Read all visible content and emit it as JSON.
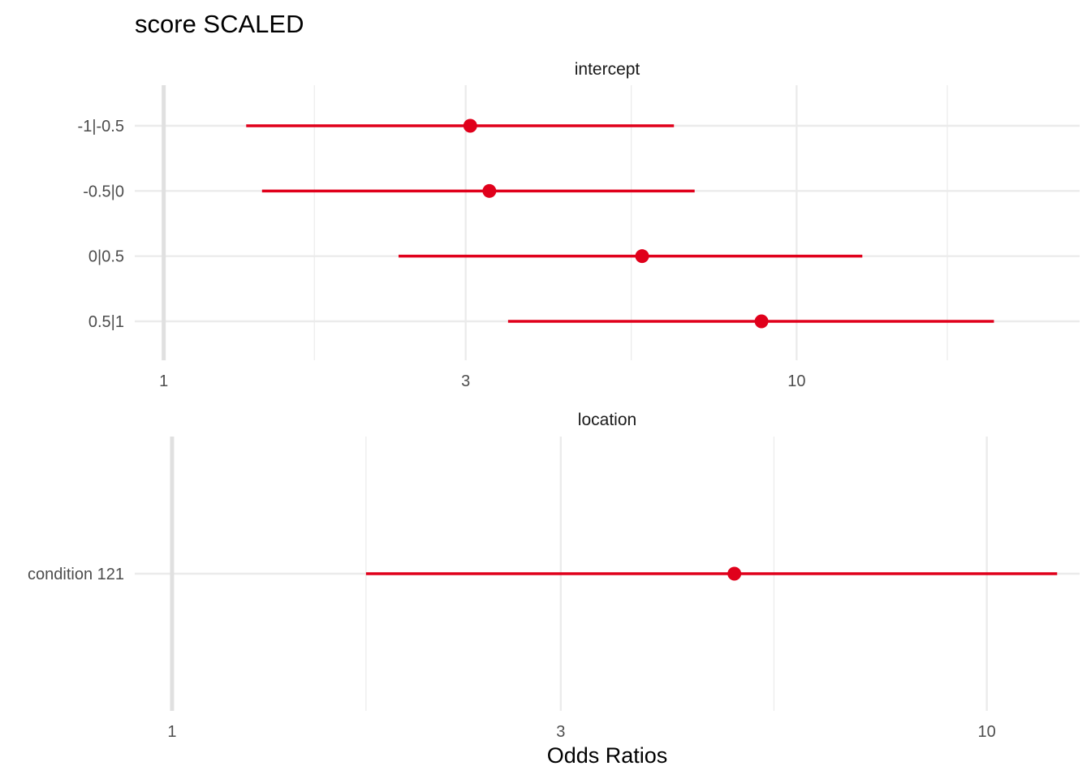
{
  "chart_data": {
    "type": "forest",
    "title": "score SCALED",
    "xlabel": "Odds Ratios",
    "x_scale": "log10",
    "reference_line": 1,
    "colors": {
      "point": "#e0001b",
      "interval": "#e0001b",
      "grid": "#ebebeb",
      "reference": "#e0e0e0"
    },
    "panels": [
      {
        "strip": "intercept",
        "xlim": [
          0.9,
          28
        ],
        "x_ticks": [
          1,
          3,
          10
        ],
        "x_tick_labels": [
          "1",
          "3",
          "10"
        ],
        "minor_ticks": [
          1.73,
          5.48,
          17.3
        ],
        "terms": [
          {
            "label": "-1|-0.5",
            "estimate": 3.05,
            "low": 1.35,
            "high": 6.4
          },
          {
            "label": "-0.5|0",
            "estimate": 3.27,
            "low": 1.43,
            "high": 6.9
          },
          {
            "label": "0|0.5",
            "estimate": 5.7,
            "low": 2.35,
            "high": 12.7
          },
          {
            "label": "0.5|1",
            "estimate": 8.8,
            "low": 3.5,
            "high": 20.5
          }
        ]
      },
      {
        "strip": "location",
        "xlim": [
          0.9,
          13
        ],
        "x_ticks": [
          1,
          3,
          10
        ],
        "x_tick_labels": [
          "1",
          "3",
          "10"
        ],
        "minor_ticks": [
          1.73,
          5.48
        ],
        "terms": [
          {
            "label": "condition 121",
            "estimate": 4.9,
            "low": 1.73,
            "high": 12.2
          }
        ]
      }
    ]
  }
}
